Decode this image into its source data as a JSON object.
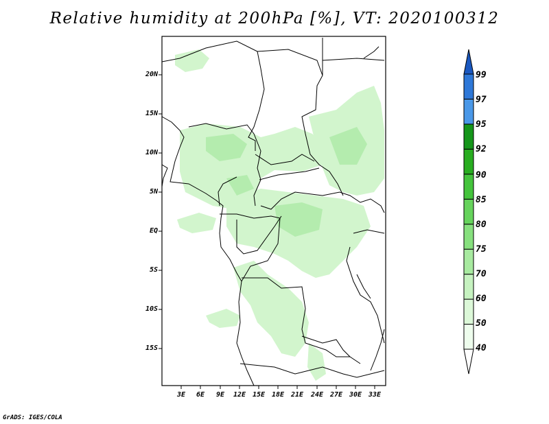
{
  "title": "Relative humidity at 200hPa [%], VT: 2020100312",
  "footer": "GrADS: IGES/COLA",
  "lat_labels": [
    "20N",
    "15N",
    "10N",
    "5N",
    "EQ",
    "5S",
    "10S",
    "15S"
  ],
  "lon_labels": [
    "3E",
    "6E",
    "9E",
    "12E",
    "15E",
    "18E",
    "21E",
    "24E",
    "27E",
    "30E",
    "33E"
  ],
  "colorbar": {
    "labels": [
      "40",
      "50",
      "60",
      "70",
      "75",
      "80",
      "85",
      "90",
      "92",
      "95",
      "97",
      "99"
    ],
    "colors": [
      "#ffffff",
      "#eefded",
      "#dcf8d8",
      "#c6f2c0",
      "#a8eaa0",
      "#87e07e",
      "#66d35c",
      "#44c43c",
      "#28ad20",
      "#15961a",
      "#4a98e8",
      "#2e78d8",
      "#1a58c0"
    ]
  },
  "colors": {
    "land_shade": "#d2f5cd",
    "land_shade_dark": "#b4ecae",
    "border": "#000000"
  }
}
